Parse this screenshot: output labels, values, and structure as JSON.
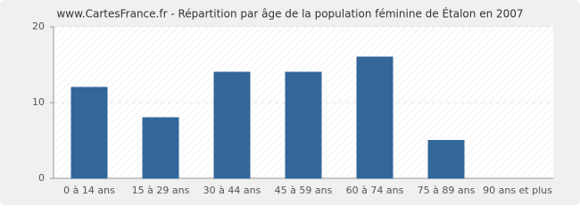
{
  "chart_data": {
    "type": "bar",
    "title": "www.CartesFrance.fr - Répartition par âge de la population féminine de Étalon en 2007",
    "categories": [
      "0 à 14 ans",
      "15 à 29 ans",
      "30 à 44 ans",
      "45 à 59 ans",
      "60 à 74 ans",
      "75 à 89 ans",
      "90 ans et plus"
    ],
    "values": [
      12,
      8,
      14,
      14,
      16,
      5,
      0
    ],
    "color": "#336699",
    "ylim": [
      0,
      20
    ],
    "yticks": [
      0,
      10,
      20
    ],
    "grid": true
  }
}
